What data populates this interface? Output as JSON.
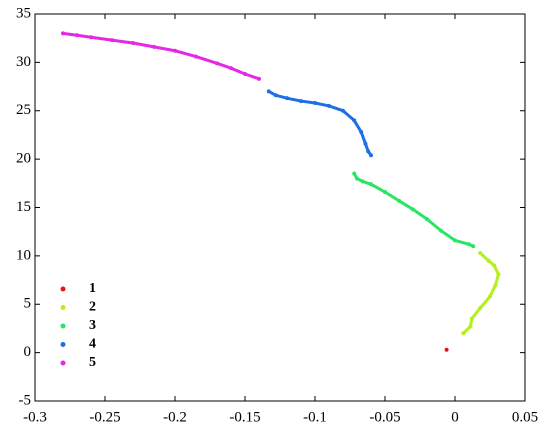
{
  "chart_data": {
    "type": "scatter",
    "xlim": [
      -0.3,
      0.05
    ],
    "ylim": [
      -5,
      35
    ],
    "xticks": [
      -0.3,
      -0.25,
      -0.2,
      -0.15,
      -0.1,
      -0.05,
      0,
      0.05
    ],
    "yticks": [
      -5,
      0,
      5,
      10,
      15,
      20,
      25,
      30,
      35
    ],
    "legend": "lower left",
    "series": [
      {
        "name": "1",
        "color": "#e8141c",
        "x": [
          -0.006
        ],
        "values": [
          0.3
        ]
      },
      {
        "name": "2",
        "color": "#b4f01e",
        "x": [
          0.006,
          0.011,
          0.012,
          0.018,
          0.025,
          0.029,
          0.031,
          0.028,
          0.024,
          0.018
        ],
        "values": [
          2,
          2.7,
          3.5,
          4.6,
          5.8,
          7,
          8.1,
          9,
          9.5,
          10.3
        ]
      },
      {
        "name": "3",
        "color": "#28e664",
        "x": [
          0.013,
          0.01,
          0,
          -0.01,
          -0.02,
          -0.03,
          -0.04,
          -0.05,
          -0.06,
          -0.066,
          -0.07,
          -0.072
        ],
        "values": [
          11,
          11.2,
          11.6,
          12.6,
          13.8,
          14.8,
          15.7,
          16.6,
          17.4,
          17.7,
          18,
          18.5
        ]
      },
      {
        "name": "4",
        "color": "#1e6ee6",
        "x": [
          -0.06,
          -0.062,
          -0.064,
          -0.067,
          -0.072,
          -0.08,
          -0.09,
          -0.1,
          -0.11,
          -0.12,
          -0.128,
          -0.133
        ],
        "values": [
          20.4,
          20.8,
          21.6,
          22.8,
          24,
          25,
          25.5,
          25.8,
          26,
          26.3,
          26.6,
          27
        ]
      },
      {
        "name": "5",
        "color": "#e628e6",
        "x": [
          -0.14,
          -0.15,
          -0.16,
          -0.17,
          -0.185,
          -0.2,
          -0.215,
          -0.23,
          -0.245,
          -0.26,
          -0.27,
          -0.28
        ],
        "values": [
          28.3,
          28.8,
          29.4,
          29.9,
          30.6,
          31.2,
          31.6,
          32,
          32.3,
          32.6,
          32.8,
          33
        ]
      }
    ]
  }
}
